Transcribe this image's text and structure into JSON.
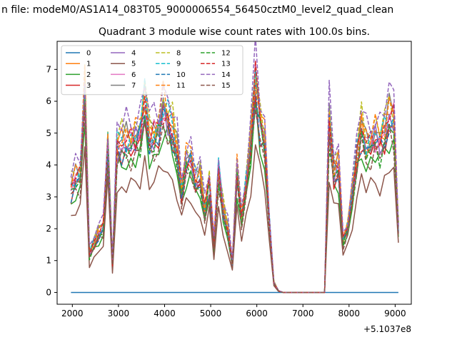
{
  "figure": {
    "suptitle": "n file: modeM0/AS1A14_083T05_9000006554_56450cztM0_level2_quad_clean",
    "background": "#ffffff"
  },
  "chart_data": {
    "type": "line",
    "title": "Quadrant 3 module wise count rates with 100.0s bins.",
    "xlabel": "",
    "ylabel": "",
    "x_offset_label": "+5.1037e8",
    "xlim": [
      1670,
      9350
    ],
    "ylim": [
      -0.37,
      7.88
    ],
    "xticks": [
      2000,
      3000,
      4000,
      5000,
      6000,
      7000,
      8000,
      9000
    ],
    "xtick_labels": [
      "2000",
      "3000",
      "4000",
      "5000",
      "6000",
      "7000",
      "8000",
      "9000"
    ],
    "yticks": [
      0,
      1,
      2,
      3,
      4,
      5,
      6,
      7
    ],
    "ytick_labels": [
      "0",
      "1",
      "2",
      "3",
      "4",
      "5",
      "6",
      "7"
    ],
    "grid": false,
    "legend_position": "top-left",
    "legend_columns": 4,
    "bins": {
      "start": 1970,
      "end": 9070,
      "step": 100
    },
    "series": [
      {
        "name": "0",
        "color": "#1f77b4",
        "dash": "solid",
        "kind": "zero"
      },
      {
        "name": "1",
        "color": "#ff7f0e",
        "dash": "solid",
        "scale": 1.04,
        "seed": 1
      },
      {
        "name": "2",
        "color": "#2ca02c",
        "dash": "solid",
        "scale": 0.89,
        "seed": 2
      },
      {
        "name": "3",
        "color": "#d62728",
        "dash": "solid",
        "scale": 0.97,
        "seed": 3
      },
      {
        "name": "4",
        "color": "#9467bd",
        "dash": "solid",
        "scale": 1.0,
        "seed": 4
      },
      {
        "name": "5",
        "color": "#8c564b",
        "dash": "solid",
        "scale": 0.72,
        "seed": 5
      },
      {
        "name": "6",
        "color": "#e377c2",
        "dash": "solid",
        "scale": 1.02,
        "seed": 6
      },
      {
        "name": "7",
        "color": "#7f7f7f",
        "dash": "solid",
        "scale": 1.06,
        "seed": 7
      },
      {
        "name": "8",
        "color": "#bcbd22",
        "dash": "dashed",
        "scale": 1.1,
        "seed": 8
      },
      {
        "name": "9",
        "color": "#17becf",
        "dash": "dashed",
        "scale": 1.05,
        "seed": 9
      },
      {
        "name": "10",
        "color": "#1f77b4",
        "dash": "dashed",
        "scale": 0.98,
        "seed": 10
      },
      {
        "name": "11",
        "color": "#ff7f0e",
        "dash": "dashed",
        "scale": 1.08,
        "seed": 11
      },
      {
        "name": "12",
        "color": "#2ca02c",
        "dash": "dashed",
        "scale": 0.95,
        "seed": 12
      },
      {
        "name": "13",
        "color": "#d62728",
        "dash": "dashed",
        "scale": 1.03,
        "seed": 13
      },
      {
        "name": "14",
        "color": "#9467bd",
        "dash": "dashed",
        "scale": 1.16,
        "seed": 14
      },
      {
        "name": "15",
        "color": "#8c564b",
        "dash": "dashed",
        "scale": 0.92,
        "seed": 15
      }
    ],
    "base_profile": [
      3.2,
      3.5,
      3.6,
      6.2,
      1.2,
      1.5,
      1.8,
      2.0,
      4.6,
      0.9,
      4.5,
      4.5,
      4.6,
      4.6,
      4.7,
      4.9,
      5.8,
      4.7,
      4.8,
      5.0,
      5.6,
      5.3,
      4.9,
      4.3,
      3.1,
      4.0,
      4.1,
      3.4,
      3.5,
      2.5,
      3.4,
      1.5,
      3.7,
      2.5,
      1.9,
      0.9,
      3.7,
      2.3,
      3.3,
      4.6,
      6.5,
      5.2,
      4.6,
      2.2,
      0.3,
      0.05,
      0.0,
      0.0,
      0.0,
      0.0,
      0.0,
      0.0,
      0.0,
      0.0,
      0.0,
      0.0,
      5.3,
      3.7,
      3.9,
      1.6,
      2.0,
      3.0,
      4.2,
      5.0,
      4.5,
      4.6,
      4.8,
      4.6,
      4.9,
      5.4,
      5.3,
      2.0
    ]
  }
}
